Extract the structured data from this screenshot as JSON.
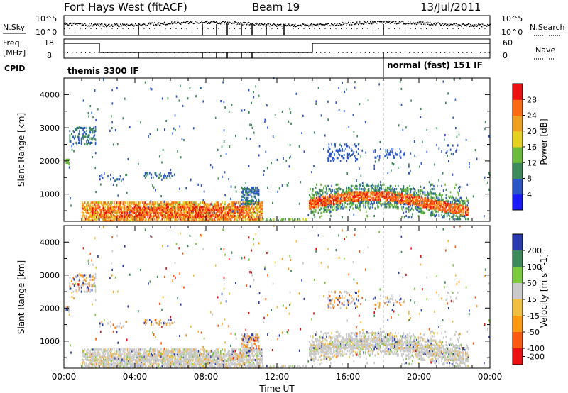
{
  "header": {
    "title": "Fort Hays West (fitACF)",
    "beam": "Beam 19",
    "date": "13/Jul/2011"
  },
  "panels": {
    "nsky": {
      "left_label": "N.Sky",
      "ticks": [
        "10^5",
        "10^0"
      ],
      "right_label": "N.Search",
      "right_ticks": [
        "10^5",
        "10^0"
      ]
    },
    "freq": {
      "left_label_1": "Freq.",
      "left_label_2": "[MHz]",
      "ticks": [
        "18",
        "8"
      ],
      "right_label": "Nave",
      "right_ticks": [
        "60",
        "0"
      ]
    },
    "cpid": {
      "label": "CPID",
      "modes": [
        "themis 3300 IF",
        "normal (fast) 151 IF"
      ]
    }
  },
  "colors": {
    "power": [
      "#1a1aff",
      "#2a55c8",
      "#3b8a5a",
      "#6cbc3c",
      "#e6d21e",
      "#f0a020",
      "#ff6a10",
      "#ee1010"
    ],
    "velocity": [
      "#ee1010",
      "#ff5a10",
      "#ff9a10",
      "#f2c040",
      "#cacaca",
      "#7acc3c",
      "#3a8a5a",
      "#2a3ab0"
    ]
  },
  "chart_data": [
    {
      "type": "heatmap",
      "name": "power",
      "xlabel": "",
      "ylabel": "Slant Range [km]",
      "x_ticks": [
        "00:00",
        "04:00",
        "08:00",
        "12:00",
        "16:00",
        "20:00",
        "00:00"
      ],
      "y_ticks": [
        "1000",
        "2000",
        "3000",
        "4000"
      ],
      "ylim": [
        180,
        4500
      ],
      "xlim_hours": [
        0,
        24
      ],
      "colorbar": {
        "label": "Power [dB]",
        "ticks": [
          "4",
          "8",
          "12",
          "16",
          "20",
          "24",
          "28"
        ],
        "range": [
          0,
          32
        ]
      }
    },
    {
      "type": "heatmap",
      "name": "velocity",
      "xlabel": "Time UT",
      "ylabel": "Slant Range [km]",
      "x_ticks": [
        "00:00",
        "04:00",
        "08:00",
        "12:00",
        "16:00",
        "20:00",
        "00:00"
      ],
      "y_ticks": [
        "1000",
        "2000",
        "3000",
        "4000"
      ],
      "ylim": [
        180,
        4500
      ],
      "xlim_hours": [
        0,
        24
      ],
      "colorbar": {
        "label": "Velocity [m s^-1]",
        "ticks": [
          "200",
          "100",
          "50",
          "15",
          "-15",
          "-50",
          "-100",
          "-200"
        ]
      }
    }
  ]
}
